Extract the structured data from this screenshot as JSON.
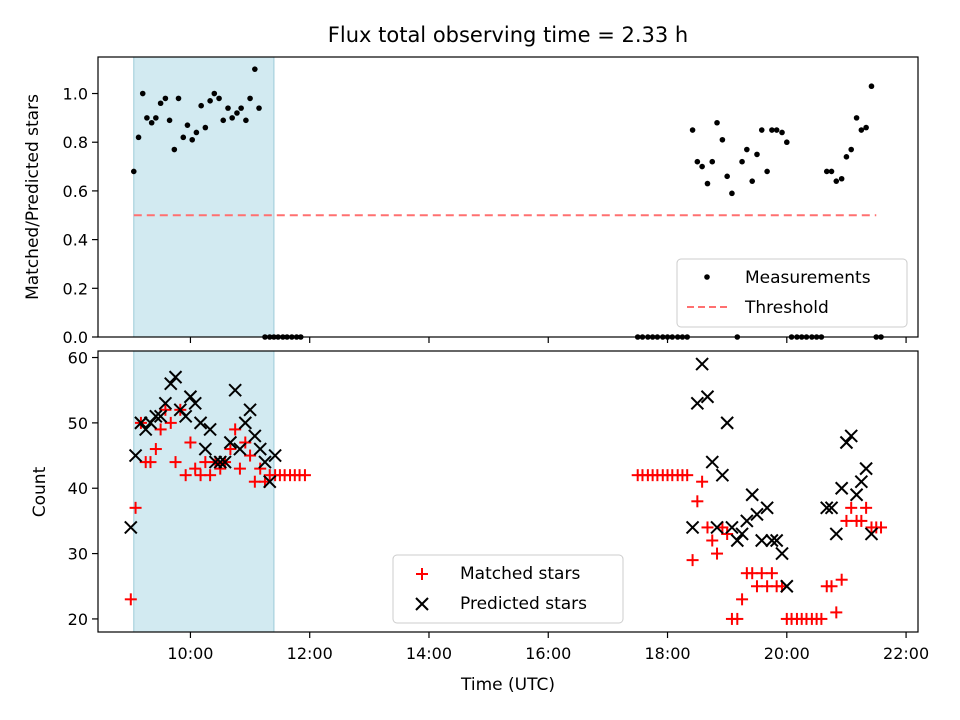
{
  "chart_data": [
    {
      "type": "scatter",
      "title": "Flux total observing time = 2.33 h",
      "xlabel": "",
      "ylabel": "Matched/Predicted stars",
      "xlim": [
        8.45,
        22.2
      ],
      "ylim": [
        0,
        1.15
      ],
      "yticks": [
        0.0,
        0.2,
        0.4,
        0.6,
        0.8,
        1.0
      ],
      "ytick_labels": [
        "0.0",
        "0.2",
        "0.4",
        "0.6",
        "0.8",
        "1.0"
      ],
      "shaded_span": [
        9.05,
        11.4
      ],
      "legend": {
        "placement": "lower-right",
        "entries": [
          "Measurements",
          "Threshold"
        ]
      },
      "series": [
        {
          "name": "Measurements",
          "marker": "dot",
          "color": "#000000",
          "points": [
            [
              9.05,
              0.68
            ],
            [
              9.13,
              0.82
            ],
            [
              9.2,
              1.0
            ],
            [
              9.27,
              0.9
            ],
            [
              9.35,
              0.88
            ],
            [
              9.42,
              0.9
            ],
            [
              9.5,
              0.96
            ],
            [
              9.58,
              0.98
            ],
            [
              9.65,
              0.89
            ],
            [
              9.73,
              0.77
            ],
            [
              9.8,
              0.98
            ],
            [
              9.88,
              0.82
            ],
            [
              9.95,
              0.87
            ],
            [
              10.03,
              0.81
            ],
            [
              10.1,
              0.84
            ],
            [
              10.18,
              0.95
            ],
            [
              10.25,
              0.86
            ],
            [
              10.33,
              0.97
            ],
            [
              10.4,
              1.0
            ],
            [
              10.48,
              0.98
            ],
            [
              10.55,
              0.89
            ],
            [
              10.63,
              0.94
            ],
            [
              10.7,
              0.9
            ],
            [
              10.78,
              0.92
            ],
            [
              10.85,
              0.94
            ],
            [
              10.93,
              0.89
            ],
            [
              11.0,
              0.98
            ],
            [
              11.08,
              1.1
            ],
            [
              11.15,
              0.94
            ],
            [
              11.25,
              0
            ],
            [
              11.33,
              0
            ],
            [
              11.4,
              0
            ],
            [
              11.47,
              0
            ],
            [
              11.55,
              0
            ],
            [
              11.62,
              0
            ],
            [
              11.7,
              0
            ],
            [
              11.78,
              0
            ],
            [
              11.85,
              0
            ],
            [
              17.5,
              0
            ],
            [
              17.58,
              0
            ],
            [
              17.67,
              0
            ],
            [
              17.75,
              0
            ],
            [
              17.83,
              0
            ],
            [
              17.92,
              0
            ],
            [
              18.0,
              0
            ],
            [
              18.08,
              0
            ],
            [
              18.17,
              0
            ],
            [
              18.25,
              0
            ],
            [
              18.33,
              0
            ],
            [
              18.42,
              0.85
            ],
            [
              18.5,
              0.72
            ],
            [
              18.58,
              0.7
            ],
            [
              18.67,
              0.63
            ],
            [
              18.75,
              0.72
            ],
            [
              18.83,
              0.88
            ],
            [
              18.92,
              0.81
            ],
            [
              19.0,
              0.66
            ],
            [
              19.08,
              0.59
            ],
            [
              19.17,
              0
            ],
            [
              19.25,
              0.72
            ],
            [
              19.33,
              0.77
            ],
            [
              19.42,
              0.64
            ],
            [
              19.5,
              0.75
            ],
            [
              19.58,
              0.85
            ],
            [
              19.67,
              0.68
            ],
            [
              19.75,
              0.85
            ],
            [
              19.83,
              0.85
            ],
            [
              19.92,
              0.84
            ],
            [
              20.0,
              0.8
            ],
            [
              20.08,
              0
            ],
            [
              20.17,
              0
            ],
            [
              20.25,
              0
            ],
            [
              20.33,
              0
            ],
            [
              20.42,
              0
            ],
            [
              20.5,
              0
            ],
            [
              20.58,
              0
            ],
            [
              20.67,
              0.68
            ],
            [
              20.75,
              0.68
            ],
            [
              20.83,
              0.64
            ],
            [
              20.92,
              0.65
            ],
            [
              21.0,
              0.74
            ],
            [
              21.08,
              0.77
            ],
            [
              21.17,
              0.9
            ],
            [
              21.25,
              0.85
            ],
            [
              21.33,
              0.86
            ],
            [
              21.42,
              1.03
            ],
            [
              21.5,
              0
            ],
            [
              21.58,
              0
            ]
          ]
        },
        {
          "name": "Threshold",
          "style": "dashed",
          "color": "#ff7070",
          "y": 0.5,
          "x_range": [
            9.05,
            21.5
          ]
        }
      ]
    },
    {
      "type": "scatter",
      "title": "",
      "xlabel": "Time (UTC)",
      "ylabel": "Count",
      "xlim": [
        8.45,
        22.2
      ],
      "ylim": [
        18,
        61
      ],
      "xticks": [
        10,
        12,
        14,
        16,
        18,
        20,
        22
      ],
      "xtick_labels": [
        "10:00",
        "12:00",
        "14:00",
        "16:00",
        "18:00",
        "20:00",
        "22:00"
      ],
      "yticks": [
        20,
        30,
        40,
        50,
        60
      ],
      "ytick_labels": [
        "20",
        "30",
        "40",
        "50",
        "60"
      ],
      "shaded_span": [
        9.05,
        11.4
      ],
      "legend": {
        "placement": "lower-center",
        "entries": [
          "Matched stars",
          "Predicted stars"
        ]
      },
      "series": [
        {
          "name": "Matched stars",
          "marker": "plus",
          "color": "#ff0000",
          "points": [
            [
              9.0,
              23
            ],
            [
              9.08,
              37
            ],
            [
              9.17,
              50
            ],
            [
              9.25,
              44
            ],
            [
              9.33,
              44
            ],
            [
              9.42,
              46
            ],
            [
              9.5,
              49
            ],
            [
              9.58,
              52
            ],
            [
              9.67,
              50
            ],
            [
              9.75,
              44
            ],
            [
              9.83,
              52
            ],
            [
              9.92,
              42
            ],
            [
              10.0,
              47
            ],
            [
              10.08,
              43
            ],
            [
              10.17,
              42
            ],
            [
              10.25,
              44
            ],
            [
              10.33,
              42
            ],
            [
              10.42,
              44
            ],
            [
              10.5,
              43
            ],
            [
              10.58,
              44
            ],
            [
              10.67,
              46
            ],
            [
              10.75,
              49
            ],
            [
              10.83,
              43
            ],
            [
              10.92,
              47
            ],
            [
              11.0,
              45
            ],
            [
              11.08,
              41
            ],
            [
              11.17,
              43
            ],
            [
              11.25,
              41
            ],
            [
              11.33,
              42
            ],
            [
              11.42,
              42
            ],
            [
              11.5,
              42
            ],
            [
              11.58,
              42
            ],
            [
              11.67,
              42
            ],
            [
              11.75,
              42
            ],
            [
              11.83,
              42
            ],
            [
              11.92,
              42
            ],
            [
              17.5,
              42
            ],
            [
              17.58,
              42
            ],
            [
              17.67,
              42
            ],
            [
              17.75,
              42
            ],
            [
              17.83,
              42
            ],
            [
              17.92,
              42
            ],
            [
              18.0,
              42
            ],
            [
              18.08,
              42
            ],
            [
              18.17,
              42
            ],
            [
              18.25,
              42
            ],
            [
              18.33,
              42
            ],
            [
              18.42,
              29
            ],
            [
              18.5,
              38
            ],
            [
              18.58,
              41
            ],
            [
              18.67,
              34
            ],
            [
              18.75,
              32
            ],
            [
              18.83,
              30
            ],
            [
              18.92,
              34
            ],
            [
              19.0,
              33
            ],
            [
              19.08,
              20
            ],
            [
              19.17,
              20
            ],
            [
              19.25,
              23
            ],
            [
              19.33,
              27
            ],
            [
              19.42,
              27
            ],
            [
              19.5,
              25
            ],
            [
              19.58,
              27
            ],
            [
              19.67,
              25
            ],
            [
              19.75,
              27
            ],
            [
              19.83,
              25
            ],
            [
              19.92,
              25
            ],
            [
              20.0,
              20
            ],
            [
              20.08,
              20
            ],
            [
              20.17,
              20
            ],
            [
              20.25,
              20
            ],
            [
              20.33,
              20
            ],
            [
              20.42,
              20
            ],
            [
              20.5,
              20
            ],
            [
              20.58,
              20
            ],
            [
              20.67,
              25
            ],
            [
              20.75,
              25
            ],
            [
              20.83,
              21
            ],
            [
              20.92,
              26
            ],
            [
              21.0,
              35
            ],
            [
              21.08,
              37
            ],
            [
              21.17,
              35
            ],
            [
              21.25,
              35
            ],
            [
              21.33,
              37
            ],
            [
              21.42,
              34
            ],
            [
              21.5,
              34
            ],
            [
              21.58,
              34
            ]
          ]
        },
        {
          "name": "Predicted stars",
          "marker": "x",
          "color": "#000000",
          "points": [
            [
              9.0,
              34
            ],
            [
              9.08,
              45
            ],
            [
              9.17,
              50
            ],
            [
              9.25,
              49
            ],
            [
              9.33,
              50
            ],
            [
              9.42,
              51
            ],
            [
              9.5,
              51
            ],
            [
              9.58,
              53
            ],
            [
              9.67,
              56
            ],
            [
              9.75,
              57
            ],
            [
              9.83,
              52
            ],
            [
              9.92,
              51
            ],
            [
              10.0,
              54
            ],
            [
              10.08,
              53
            ],
            [
              10.17,
              50
            ],
            [
              10.25,
              46
            ],
            [
              10.33,
              49
            ],
            [
              10.42,
              44
            ],
            [
              10.5,
              44
            ],
            [
              10.58,
              44
            ],
            [
              10.67,
              47
            ],
            [
              10.75,
              55
            ],
            [
              10.83,
              46
            ],
            [
              10.92,
              50
            ],
            [
              11.0,
              52
            ],
            [
              11.08,
              48
            ],
            [
              11.17,
              46
            ],
            [
              11.25,
              44
            ],
            [
              11.33,
              41
            ],
            [
              11.42,
              45
            ],
            [
              18.42,
              34
            ],
            [
              18.5,
              53
            ],
            [
              18.58,
              59
            ],
            [
              18.67,
              54
            ],
            [
              18.75,
              44
            ],
            [
              18.83,
              34
            ],
            [
              18.92,
              42
            ],
            [
              19.0,
              50
            ],
            [
              19.08,
              34
            ],
            [
              19.17,
              32
            ],
            [
              19.25,
              33
            ],
            [
              19.33,
              35
            ],
            [
              19.42,
              39
            ],
            [
              19.5,
              36
            ],
            [
              19.58,
              32
            ],
            [
              19.67,
              37
            ],
            [
              19.75,
              32
            ],
            [
              19.83,
              32
            ],
            [
              19.92,
              30
            ],
            [
              20.0,
              25
            ],
            [
              20.67,
              37
            ],
            [
              20.75,
              37
            ],
            [
              20.83,
              33
            ],
            [
              20.92,
              40
            ],
            [
              21.0,
              47
            ],
            [
              21.08,
              48
            ],
            [
              21.17,
              39
            ],
            [
              21.25,
              41
            ],
            [
              21.33,
              43
            ],
            [
              21.42,
              33
            ]
          ]
        }
      ]
    }
  ]
}
